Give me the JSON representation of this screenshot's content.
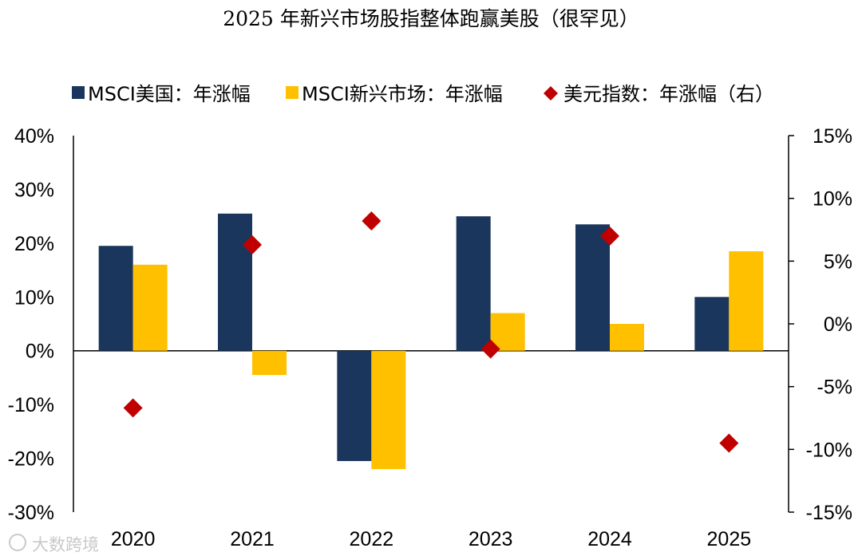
{
  "chart_data": {
    "type": "bar",
    "title": "2025 年新兴市场股指整体跑赢美股（很罕见）",
    "categories": [
      "2020",
      "2021",
      "2022",
      "2023",
      "2024",
      "2025"
    ],
    "series": [
      {
        "name": "MSCI美国：年涨幅",
        "kind": "bar",
        "axis": "left",
        "color": "#1b365d",
        "values": [
          19.5,
          25.5,
          -20.5,
          25.0,
          23.5,
          10.0
        ]
      },
      {
        "name": "MSCI新兴市场：年涨幅",
        "kind": "bar",
        "axis": "left",
        "color": "#ffc000",
        "values": [
          16.0,
          -4.5,
          -22.0,
          7.0,
          5.0,
          18.5
        ]
      },
      {
        "name": "美元指数：年涨幅（右）",
        "kind": "scatter",
        "marker": "diamond",
        "axis": "right",
        "color": "#c00000",
        "values": [
          -6.7,
          6.3,
          8.2,
          -2.0,
          7.0,
          -9.5
        ]
      }
    ],
    "y_left": {
      "min": -30,
      "max": 40,
      "step": 10,
      "ticks": [
        "-30%",
        "-20%",
        "-10%",
        "0%",
        "10%",
        "20%",
        "30%",
        "40%"
      ]
    },
    "y_right": {
      "min": -15,
      "max": 15,
      "step": 5,
      "ticks": [
        "-15%",
        "-10%",
        "-5%",
        "0%",
        "5%",
        "10%",
        "15%"
      ]
    },
    "legend_position": "top",
    "watermark": "大数跨境"
  }
}
